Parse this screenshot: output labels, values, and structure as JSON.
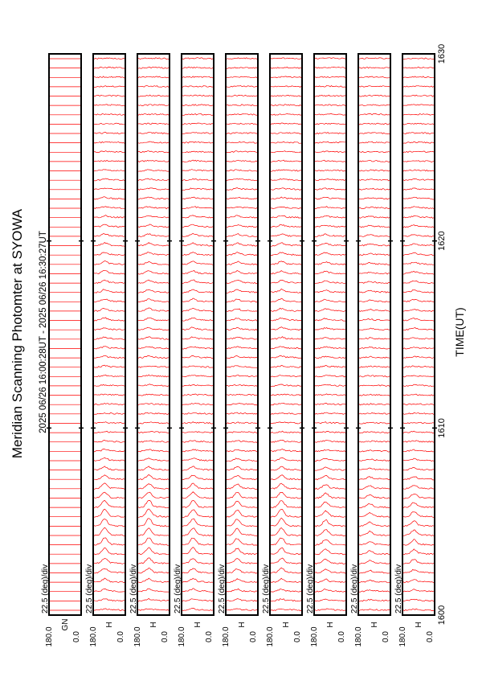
{
  "title": "Meridian Scanning Photomter at SYOWA",
  "time_range": "2025 06/26 16:00:28UT - 2025 06/26 16:30:27UT",
  "xlabel": "TIME(UT)",
  "chart_data": {
    "type": "line",
    "orientation": "rotated-90-ccw",
    "x_ticks": [
      "1600",
      "1610",
      "1620",
      "1630"
    ],
    "xlim": [
      "1600",
      "1630"
    ],
    "ylim_deg": [
      0,
      180
    ],
    "y_tick_labels": [
      "0.0",
      "180.0"
    ],
    "scale_label": "22.5 (deg)/div",
    "line_color": "#ff0000",
    "panels": [
      {
        "channel": "GN",
        "traces": 60,
        "aurora": 0.0
      },
      {
        "channel": "H",
        "traces": 60,
        "aurora": 1.0
      },
      {
        "channel": "H",
        "traces": 60,
        "aurora": 1.0
      },
      {
        "channel": "H",
        "traces": 60,
        "aurora": 1.0
      },
      {
        "channel": "H",
        "traces": 60,
        "aurora": 0.9
      },
      {
        "channel": "H",
        "traces": 60,
        "aurora": 1.0
      },
      {
        "channel": "H",
        "traces": 60,
        "aurora": 0.8
      },
      {
        "channel": "H",
        "traces": 60,
        "aurora": 0.5
      },
      {
        "channel": "H",
        "traces": 60,
        "aurora": 0.7
      }
    ]
  }
}
